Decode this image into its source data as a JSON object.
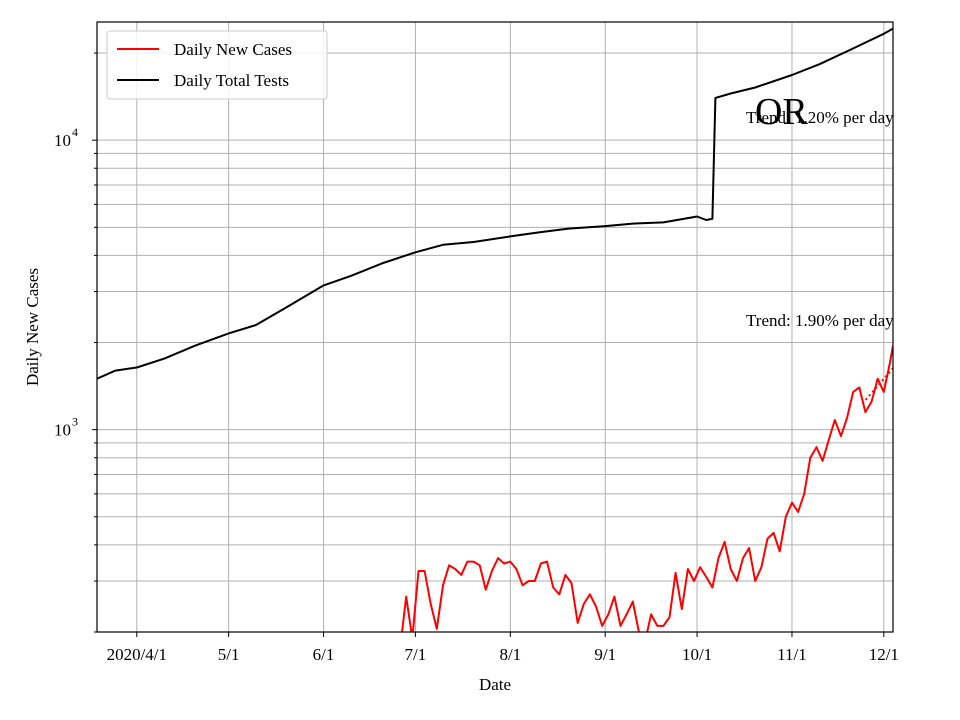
{
  "chart_data": {
    "type": "line",
    "title": "",
    "state_label": "OR",
    "xlabel": "Date",
    "ylabel": "Daily New Cases",
    "yscale": "log",
    "ylim": [
      200,
      25600
    ],
    "xlim": [
      "2020-03-19",
      "2020-12-04"
    ],
    "grid": true,
    "legend_position": "top-left",
    "x_ticks": [
      {
        "date": "2020-04-01",
        "label": "2020/4/1"
      },
      {
        "date": "2020-05-01",
        "label": "5/1"
      },
      {
        "date": "2020-06-01",
        "label": "6/1"
      },
      {
        "date": "2020-07-01",
        "label": "7/1"
      },
      {
        "date": "2020-08-01",
        "label": "8/1"
      },
      {
        "date": "2020-09-01",
        "label": "9/1"
      },
      {
        "date": "2020-10-01",
        "label": "10/1"
      },
      {
        "date": "2020-11-01",
        "label": "11/1"
      },
      {
        "date": "2020-12-01",
        "label": "12/1"
      }
    ],
    "y_ticks": [
      {
        "value": 1000,
        "base": "10",
        "exp": "3"
      },
      {
        "value": 10000,
        "base": "10",
        "exp": "4"
      }
    ],
    "series": [
      {
        "name": "Daily New Cases",
        "color": "#ff0000",
        "points": [
          [
            "2020-06-26",
            175
          ],
          [
            "2020-06-28",
            265
          ],
          [
            "2020-06-30",
            190
          ],
          [
            "2020-07-02",
            325
          ],
          [
            "2020-07-04",
            325
          ],
          [
            "2020-07-06",
            250
          ],
          [
            "2020-07-08",
            205
          ],
          [
            "2020-07-10",
            290
          ],
          [
            "2020-07-12",
            340
          ],
          [
            "2020-07-14",
            330
          ],
          [
            "2020-07-16",
            315
          ],
          [
            "2020-07-18",
            350
          ],
          [
            "2020-07-20",
            350
          ],
          [
            "2020-07-22",
            340
          ],
          [
            "2020-07-24",
            280
          ],
          [
            "2020-07-26",
            325
          ],
          [
            "2020-07-28",
            360
          ],
          [
            "2020-07-30",
            345
          ],
          [
            "2020-08-01",
            350
          ],
          [
            "2020-08-03",
            330
          ],
          [
            "2020-08-05",
            290
          ],
          [
            "2020-08-07",
            300
          ],
          [
            "2020-08-09",
            300
          ],
          [
            "2020-08-11",
            345
          ],
          [
            "2020-08-13",
            350
          ],
          [
            "2020-08-15",
            285
          ],
          [
            "2020-08-17",
            270
          ],
          [
            "2020-08-19",
            315
          ],
          [
            "2020-08-21",
            295
          ],
          [
            "2020-08-23",
            215
          ],
          [
            "2020-08-25",
            250
          ],
          [
            "2020-08-27",
            270
          ],
          [
            "2020-08-29",
            245
          ],
          [
            "2020-08-31",
            210
          ],
          [
            "2020-09-02",
            230
          ],
          [
            "2020-09-04",
            265
          ],
          [
            "2020-09-06",
            210
          ],
          [
            "2020-09-08",
            230
          ],
          [
            "2020-09-10",
            255
          ],
          [
            "2020-09-12",
            200
          ],
          [
            "2020-09-14",
            185
          ],
          [
            "2020-09-16",
            230
          ],
          [
            "2020-09-18",
            210
          ],
          [
            "2020-09-20",
            210
          ],
          [
            "2020-09-22",
            225
          ],
          [
            "2020-09-24",
            320
          ],
          [
            "2020-09-26",
            240
          ],
          [
            "2020-09-28",
            330
          ],
          [
            "2020-09-30",
            300
          ],
          [
            "2020-10-02",
            335
          ],
          [
            "2020-10-04",
            310
          ],
          [
            "2020-10-06",
            285
          ],
          [
            "2020-10-08",
            360
          ],
          [
            "2020-10-10",
            410
          ],
          [
            "2020-10-12",
            330
          ],
          [
            "2020-10-14",
            300
          ],
          [
            "2020-10-16",
            360
          ],
          [
            "2020-10-18",
            390
          ],
          [
            "2020-10-20",
            300
          ],
          [
            "2020-10-22",
            335
          ],
          [
            "2020-10-24",
            420
          ],
          [
            "2020-10-26",
            440
          ],
          [
            "2020-10-28",
            380
          ],
          [
            "2020-10-30",
            500
          ],
          [
            "2020-11-01",
            560
          ],
          [
            "2020-11-03",
            520
          ],
          [
            "2020-11-05",
            600
          ],
          [
            "2020-11-07",
            800
          ],
          [
            "2020-11-09",
            870
          ],
          [
            "2020-11-11",
            780
          ],
          [
            "2020-11-13",
            920
          ],
          [
            "2020-11-15",
            1080
          ],
          [
            "2020-11-17",
            950
          ],
          [
            "2020-11-19",
            1100
          ],
          [
            "2020-11-21",
            1350
          ],
          [
            "2020-11-23",
            1400
          ],
          [
            "2020-11-25",
            1150
          ],
          [
            "2020-11-27",
            1250
          ],
          [
            "2020-11-29",
            1500
          ],
          [
            "2020-12-01",
            1350
          ],
          [
            "2020-12-03",
            1700
          ],
          [
            "2020-12-04",
            1950
          ]
        ]
      },
      {
        "name": "Daily Total Tests",
        "color": "#000000",
        "points": [
          [
            "2020-03-19",
            1500
          ],
          [
            "2020-03-25",
            1600
          ],
          [
            "2020-04-01",
            1640
          ],
          [
            "2020-04-10",
            1760
          ],
          [
            "2020-04-20",
            1950
          ],
          [
            "2020-05-01",
            2150
          ],
          [
            "2020-05-10",
            2300
          ],
          [
            "2020-05-20",
            2650
          ],
          [
            "2020-06-01",
            3150
          ],
          [
            "2020-06-10",
            3400
          ],
          [
            "2020-06-20",
            3750
          ],
          [
            "2020-07-01",
            4100
          ],
          [
            "2020-07-10",
            4350
          ],
          [
            "2020-07-20",
            4450
          ],
          [
            "2020-08-01",
            4650
          ],
          [
            "2020-08-10",
            4800
          ],
          [
            "2020-08-20",
            4950
          ],
          [
            "2020-09-01",
            5050
          ],
          [
            "2020-09-10",
            5150
          ],
          [
            "2020-09-20",
            5200
          ],
          [
            "2020-10-01",
            5450
          ],
          [
            "2020-10-04",
            5300
          ],
          [
            "2020-10-06",
            5350
          ],
          [
            "2020-10-07",
            14000
          ],
          [
            "2020-10-12",
            14500
          ],
          [
            "2020-10-20",
            15200
          ],
          [
            "2020-11-01",
            16800
          ],
          [
            "2020-11-10",
            18300
          ],
          [
            "2020-11-20",
            20500
          ],
          [
            "2020-12-01",
            23300
          ],
          [
            "2020-12-04",
            24300
          ]
        ]
      }
    ],
    "trend_lines": [
      {
        "series": "Daily New Cases",
        "style": "dotted",
        "color": "#ff0000",
        "points": [
          [
            "2020-11-24",
            1230
          ],
          [
            "2020-12-04",
            1630
          ]
        ]
      }
    ],
    "annotations": [
      {
        "text": "Trend: 1.20% per day"
      },
      {
        "text": "Trend: 1.90% per day"
      }
    ]
  }
}
